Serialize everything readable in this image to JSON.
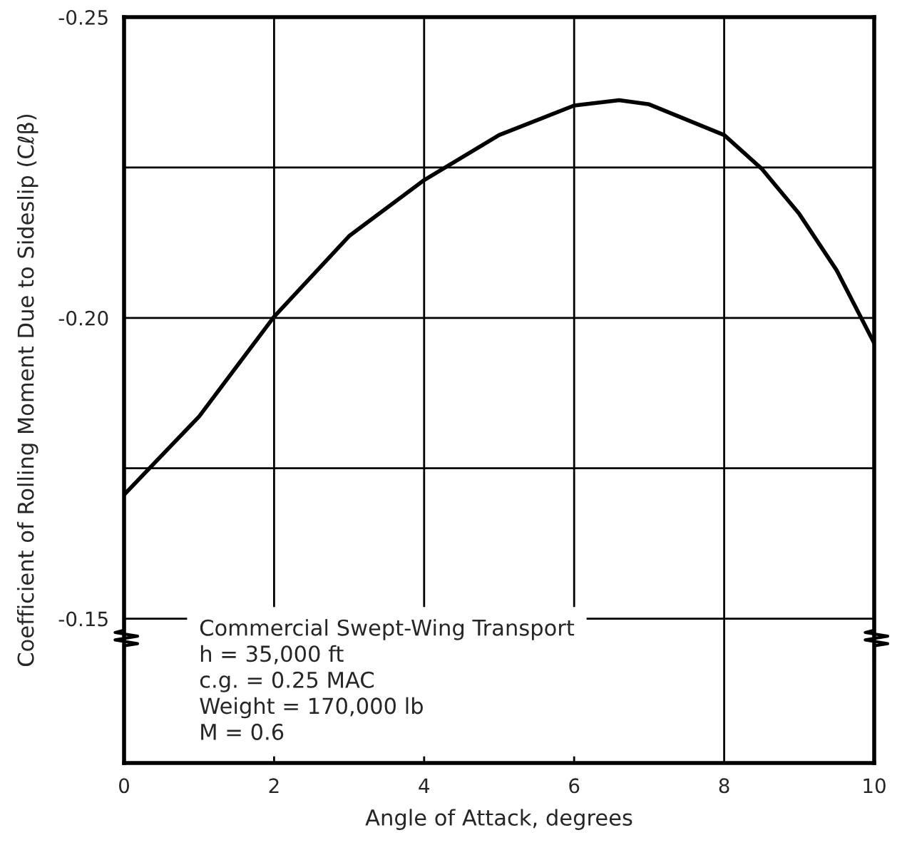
{
  "chart_data": {
    "type": "line",
    "xlabel": "Angle of Attack, degrees",
    "ylabel": "Coefficient of Rolling Moment Due to Sideslip (Cℓβ)",
    "x": [
      0,
      1,
      2,
      3,
      4,
      5,
      6,
      6.6,
      7,
      8,
      8.5,
      9,
      9.5,
      10
    ],
    "series": [
      {
        "color": "#000000",
        "values": [
          -0.1706,
          -0.1836,
          -0.2002,
          -0.2136,
          -0.2229,
          -0.2304,
          -0.2353,
          -0.2362,
          -0.2355,
          -0.2304,
          -0.2248,
          -0.2173,
          -0.2079,
          -0.1958
        ]
      }
    ],
    "xlim": [
      0,
      10
    ],
    "xticks": [
      0,
      2,
      4,
      6,
      8,
      10
    ],
    "ylim": [
      -0.126,
      -0.25
    ],
    "yticks": [
      {
        "value": -0.25,
        "label": "-0.25"
      },
      {
        "value": -0.225,
        "label": null
      },
      {
        "value": -0.2,
        "label": "-0.20"
      },
      {
        "value": -0.175,
        "label": null
      },
      {
        "value": -0.15,
        "label": "-0.15"
      }
    ],
    "grid": true,
    "marker": "none",
    "line_style": "solid",
    "annotations": [
      "Commercial Swept-Wing Transport\nh = 35,000 ft\nc.g. = 0.25 MAC\nWeight = 170,000 lb\nM = 0.6"
    ]
  }
}
